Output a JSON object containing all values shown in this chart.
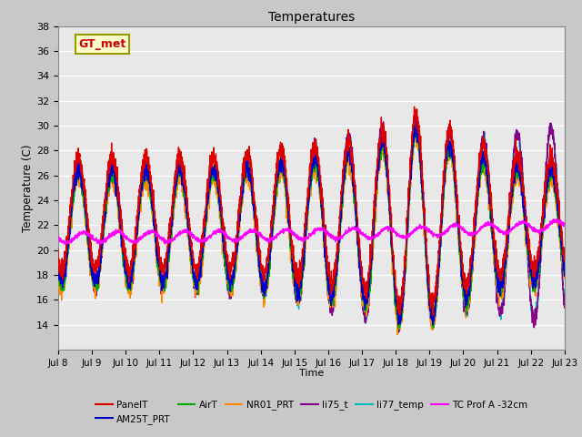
{
  "title": "Temperatures",
  "xlabel": "Time",
  "ylabel": "Temperature (C)",
  "ylim": [
    12,
    38
  ],
  "series_colors": {
    "PanelT": "#dd0000",
    "AM25T_PRT": "#0000cc",
    "AirT": "#00aa00",
    "NR01_PRT": "#ff8800",
    "li75_t": "#880088",
    "li77_temp": "#00bbbb",
    "TC Prof A -32cm": "#ff00ff"
  },
  "x_tick_labels": [
    "Jul 8",
    "Jul 9",
    "Jul 10",
    "Jul 11",
    "Jul 12",
    "Jul 13",
    "Jul 14",
    "Jul 15",
    "Jul 16",
    "Jul 17",
    "Jul 18",
    "Jul 19",
    "Jul 20",
    "Jul 21",
    "Jul 22",
    "Jul 23"
  ],
  "y_ticks": [
    14,
    16,
    18,
    20,
    22,
    24,
    26,
    28,
    30,
    32,
    34,
    36,
    38
  ],
  "annotation_text": "GT_met",
  "fig_bg": "#c8c8c8",
  "plot_bg": "#e8e8e8"
}
